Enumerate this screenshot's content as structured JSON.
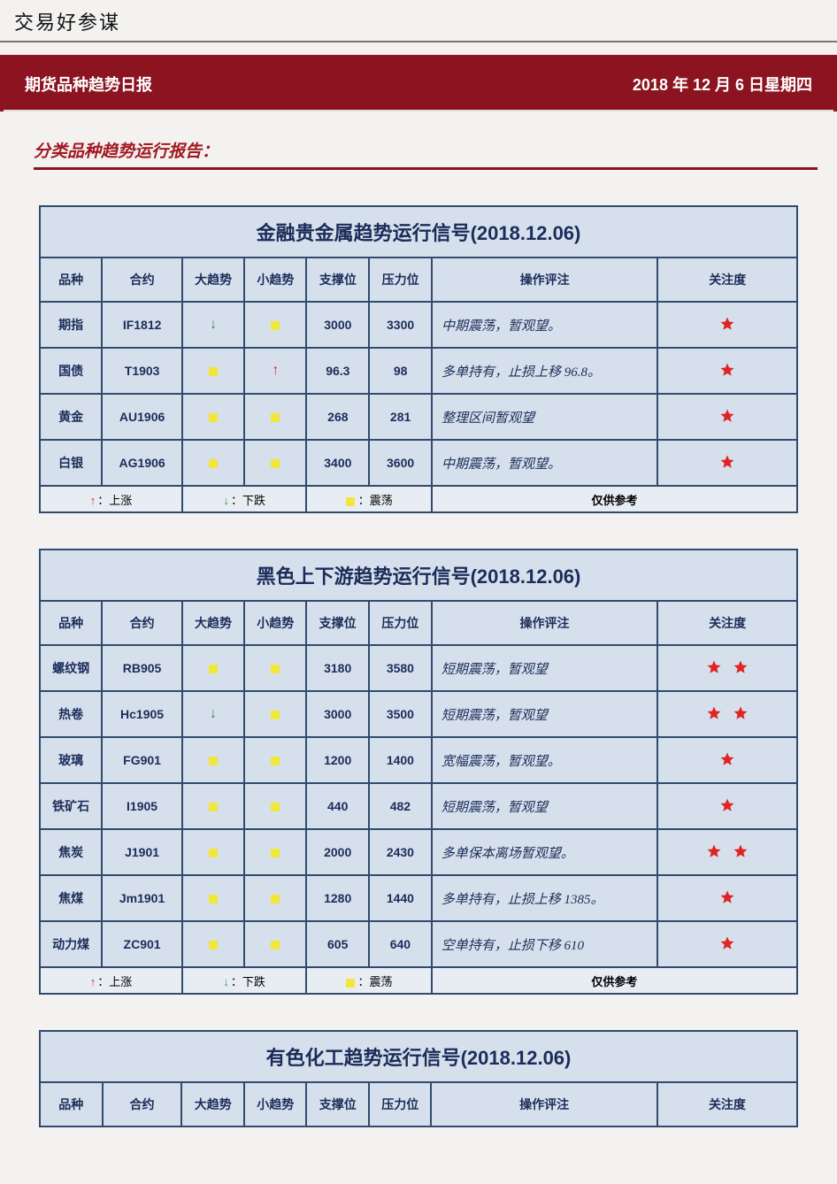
{
  "page": {
    "header_title": "交易好参谋",
    "banner_left": "期货品种趋势日报",
    "banner_right": "2018 年 12 月 6 日星期四",
    "section_title": "分类品种趋势运行报告："
  },
  "colors": {
    "banner_bg": "#8b1420",
    "cell_bg": "#d6e0ec",
    "table_border": "#314a6e",
    "text_navy": "#1c2c5a",
    "star": "#e02424",
    "arrow_up": "#d82b2b",
    "arrow_down": "#2d9b3c",
    "flat_square": "#f2e63a"
  },
  "legend": {
    "up_label": "上涨",
    "down_label": "下跌",
    "flat_label": "震荡",
    "note": "仅供参考"
  },
  "columns": [
    "品种",
    "合约",
    "大趋势",
    "小趋势",
    "支撑位",
    "压力位",
    "操作评注",
    "关注度"
  ],
  "tables": [
    {
      "title": "金融贵金属趋势运行信号(2018.12.06)",
      "rows": [
        {
          "name": "期指",
          "code": "IF1812",
          "big": "down",
          "small": "flat",
          "support": "3000",
          "resist": "3300",
          "comment": "中期震荡，暂观望。",
          "stars": 1
        },
        {
          "name": "国债",
          "code": "T1903",
          "big": "flat",
          "small": "up",
          "support": "96.3",
          "resist": "98",
          "comment": "多单持有，止损上移 96.8。",
          "stars": 1
        },
        {
          "name": "黄金",
          "code": "AU1906",
          "big": "flat",
          "small": "flat",
          "support": "268",
          "resist": "281",
          "comment": "整理区间暂观望",
          "stars": 1
        },
        {
          "name": "白银",
          "code": "AG1906",
          "big": "flat",
          "small": "flat",
          "support": "3400",
          "resist": "3600",
          "comment": "中期震荡，暂观望。",
          "stars": 1
        }
      ]
    },
    {
      "title": "黑色上下游趋势运行信号(2018.12.06)",
      "rows": [
        {
          "name": "螺纹钢",
          "code": "RB905",
          "big": "flat",
          "small": "flat",
          "support": "3180",
          "resist": "3580",
          "comment": "短期震荡，暂观望",
          "stars": 2
        },
        {
          "name": "热卷",
          "code": "Hc1905",
          "big": "down",
          "small": "flat",
          "support": "3000",
          "resist": "3500",
          "comment": "短期震荡，暂观望",
          "stars": 2
        },
        {
          "name": "玻璃",
          "code": "FG901",
          "big": "flat",
          "small": "flat",
          "support": "1200",
          "resist": "1400",
          "comment": "宽幅震荡，暂观望。",
          "stars": 1
        },
        {
          "name": "铁矿石",
          "code": "I1905",
          "big": "flat",
          "small": "flat",
          "support": "440",
          "resist": "482",
          "comment": "短期震荡，暂观望",
          "stars": 1
        },
        {
          "name": "焦炭",
          "code": "J1901",
          "big": "flat",
          "small": "flat",
          "support": "2000",
          "resist": "2430",
          "comment": "多单保本离场暂观望。",
          "stars": 2
        },
        {
          "name": "焦煤",
          "code": "Jm1901",
          "big": "flat",
          "small": "flat",
          "support": "1280",
          "resist": "1440",
          "comment": "多单持有，止损上移 1385。",
          "stars": 1
        },
        {
          "name": "动力煤",
          "code": "ZC901",
          "big": "flat",
          "small": "flat",
          "support": "605",
          "resist": "640",
          "comment": "空单持有，止损下移 610",
          "stars": 1
        }
      ]
    },
    {
      "title": "有色化工趋势运行信号(2018.12.06)",
      "rows": []
    }
  ]
}
